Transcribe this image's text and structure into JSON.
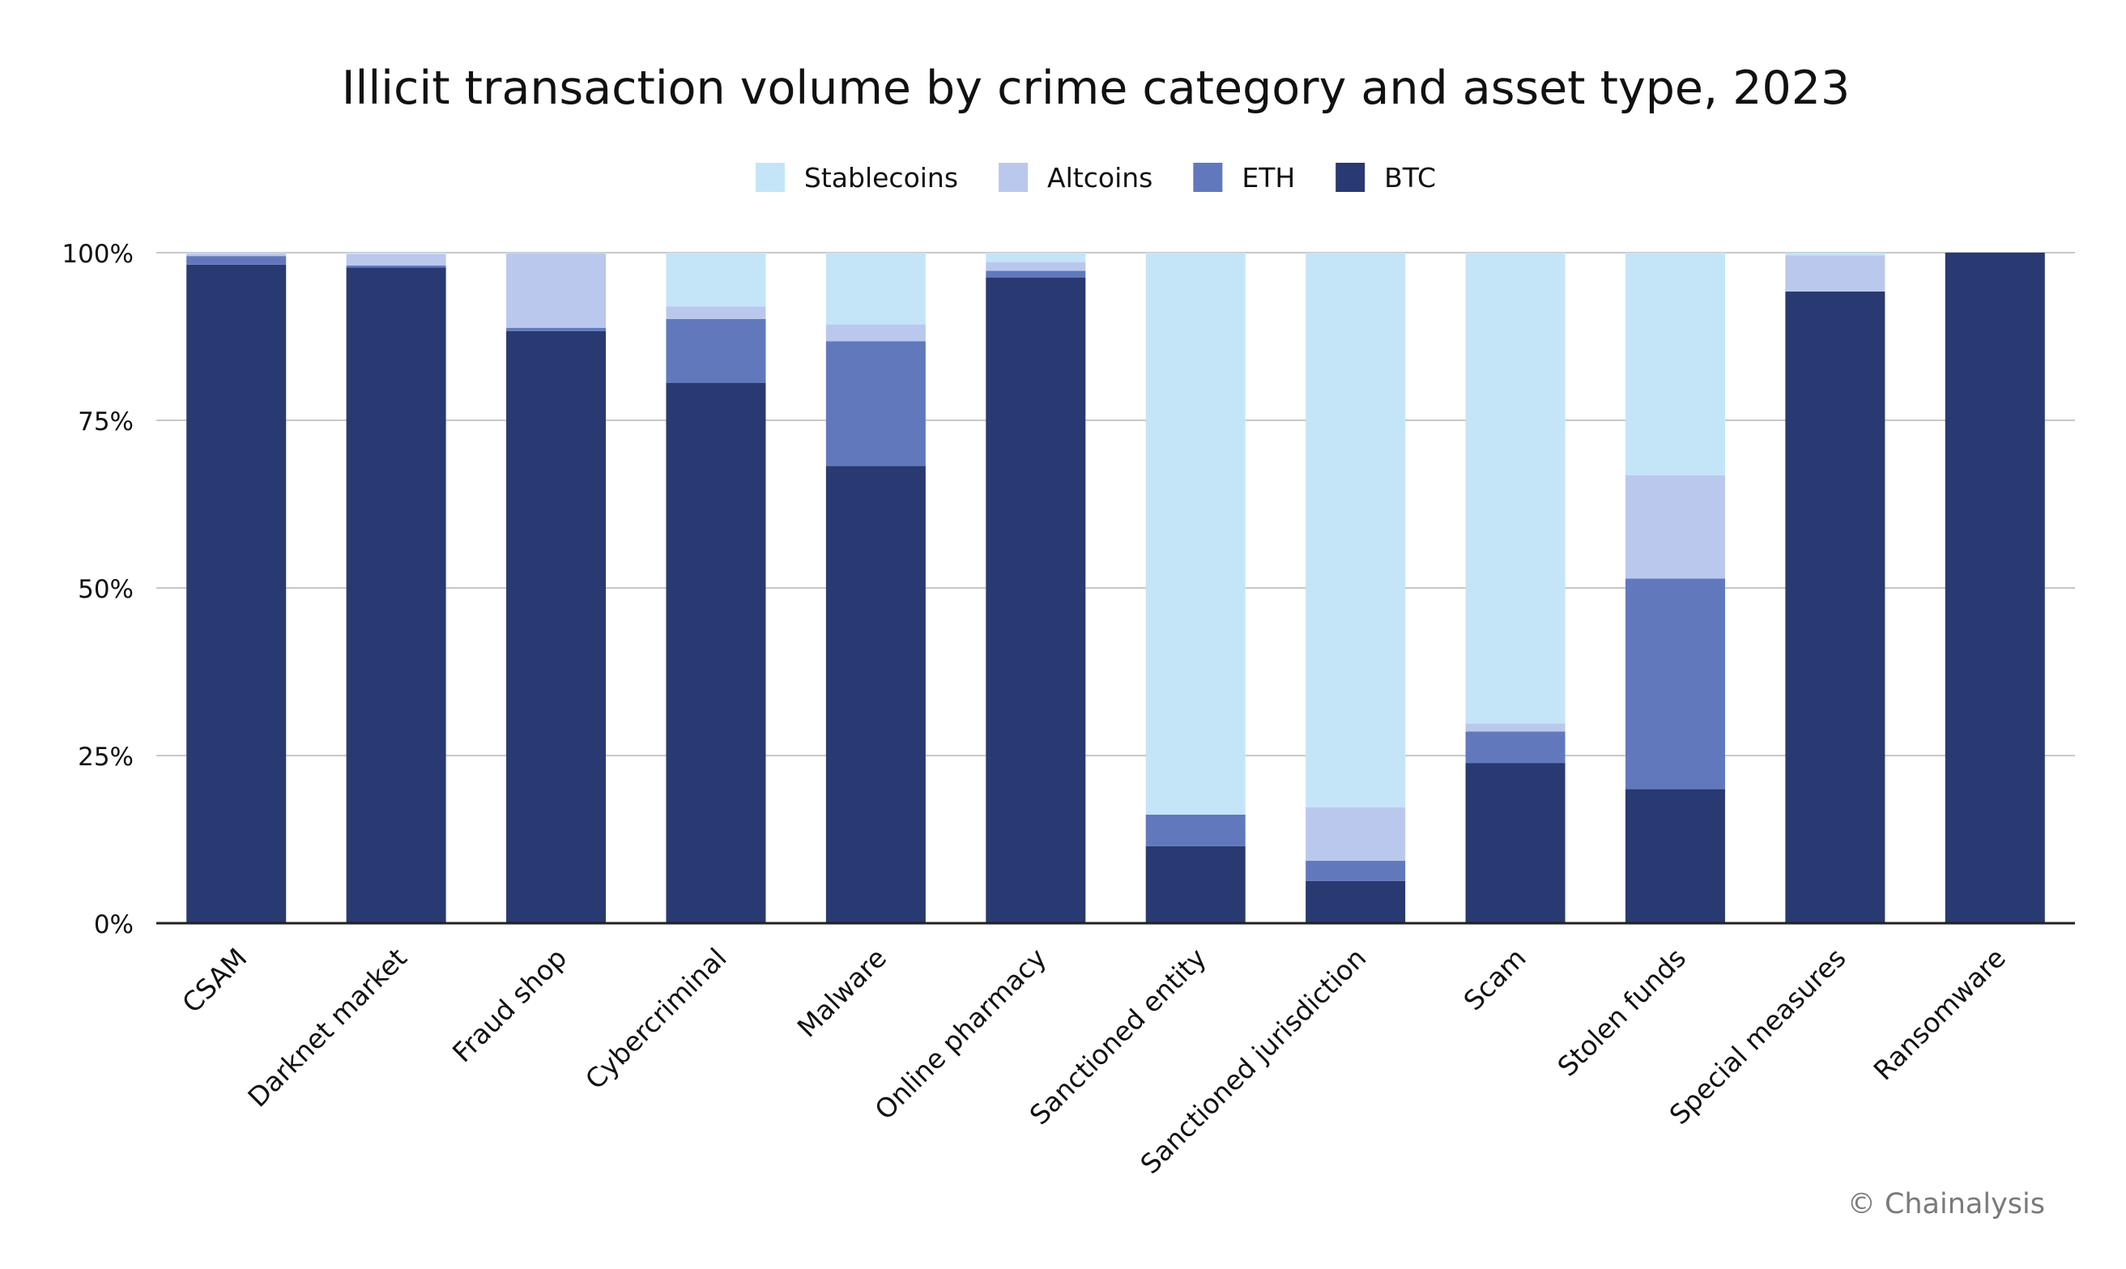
{
  "chart_data": {
    "type": "bar",
    "stacked": true,
    "title": "Illicit transaction volume by crime category and asset type, 2023",
    "xlabel": "",
    "ylabel": "",
    "ylim": [
      0,
      100
    ],
    "yticks": [
      0,
      25,
      50,
      75,
      100
    ],
    "ytick_labels": [
      "0%",
      "25%",
      "50%",
      "75%",
      "100%"
    ],
    "grid": true,
    "legend_position": "top-center",
    "legend_order": [
      "Stablecoins",
      "Altcoins",
      "ETH",
      "BTC"
    ],
    "categories": [
      "CSAM",
      "Darknet market",
      "Fraud shop",
      "Cybercriminal",
      "Malware",
      "Online pharmacy",
      "Sanctioned entity",
      "Sanctioned jurisdiction",
      "Scam",
      "Stolen funds",
      "Special measures",
      "Ransomware"
    ],
    "series": [
      {
        "name": "BTC",
        "color": "#293972",
        "values": [
          98.2,
          97.8,
          88.3,
          80.6,
          68.2,
          96.3,
          11.5,
          6.3,
          23.9,
          20.0,
          94.2,
          100.0
        ]
      },
      {
        "name": "ETH",
        "color": "#6179bc",
        "values": [
          1.3,
          0.3,
          0.5,
          9.5,
          18.6,
          1.0,
          4.7,
          3.0,
          4.7,
          31.4,
          0.0,
          0.0
        ]
      },
      {
        "name": "Altcoins",
        "color": "#bac8ed",
        "values": [
          0.4,
          1.7,
          11.1,
          1.9,
          2.5,
          1.3,
          0.0,
          8.0,
          1.2,
          15.4,
          5.4,
          0.0
        ]
      },
      {
        "name": "Stablecoins",
        "color": "#c4e5f7",
        "values": [
          0.1,
          0.2,
          0.1,
          8.0,
          10.7,
          1.4,
          83.8,
          82.7,
          70.2,
          33.2,
          0.4,
          0.0
        ]
      }
    ],
    "source_note": "© Chainalysis"
  }
}
